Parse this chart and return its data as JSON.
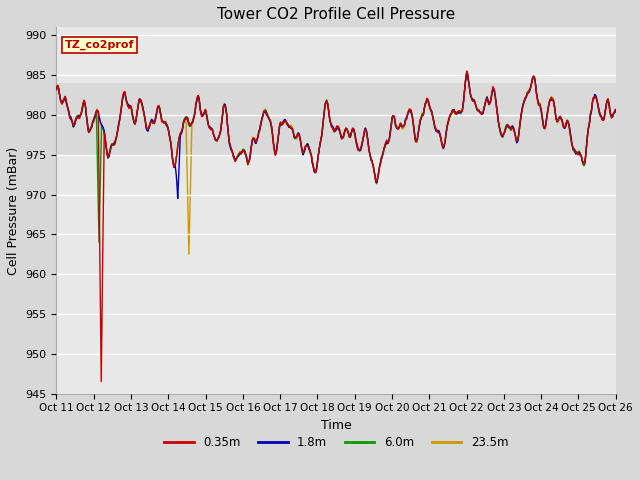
{
  "title": "Tower CO2 Profile Cell Pressure",
  "ylabel": "Cell Pressure (mBar)",
  "xlabel": "Time",
  "legend_label": "TZ_co2prof",
  "series_labels": [
    "0.35m",
    "1.8m",
    "6.0m",
    "23.5m"
  ],
  "series_colors": [
    "#cc0000",
    "#0000bb",
    "#009900",
    "#cc9900"
  ],
  "ylim": [
    945,
    991
  ],
  "yticks": [
    945,
    950,
    955,
    960,
    965,
    970,
    975,
    980,
    985,
    990
  ],
  "xtick_labels": [
    "Oct 11",
    "Oct 12",
    "Oct 13",
    "Oct 14",
    "Oct 15",
    "Oct 16",
    "Oct 17",
    "Oct 18",
    "Oct 19",
    "Oct 20",
    "Oct 21",
    "Oct 22",
    "Oct 23",
    "Oct 24",
    "Oct 25",
    "Oct 26"
  ],
  "fig_bg": "#d8d8d8",
  "plot_bg": "#e8e8e8",
  "band_bg": "#d0d0d0",
  "legend_box_color": "#ffffcc",
  "legend_box_edge": "#bb0000",
  "title_fontsize": 11,
  "axis_label_fontsize": 9,
  "tick_fontsize": 8,
  "line_width": 1.0
}
